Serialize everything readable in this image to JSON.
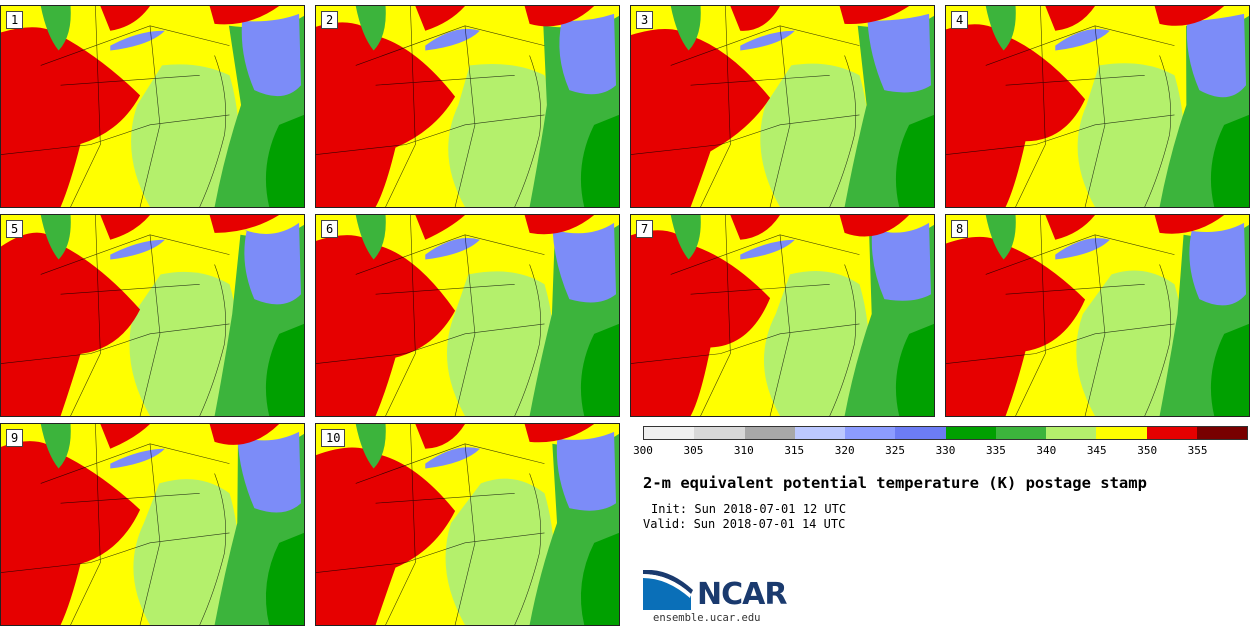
{
  "panels": [
    {
      "label": "1"
    },
    {
      "label": "2"
    },
    {
      "label": "3"
    },
    {
      "label": "4"
    },
    {
      "label": "5"
    },
    {
      "label": "6"
    },
    {
      "label": "7"
    },
    {
      "label": "8"
    },
    {
      "label": "9"
    },
    {
      "label": "10"
    }
  ],
  "colorbar": {
    "colors": [
      "#f0f0f0",
      "#d8d8d8",
      "#a8a8a8",
      "#bcc8ff",
      "#8c9cff",
      "#6c7cf4",
      "#00a000",
      "#3cb43c",
      "#b4f06c",
      "#ffff00",
      "#e60000",
      "#780000"
    ],
    "ticks": [
      "300",
      "305",
      "310",
      "315",
      "320",
      "325",
      "330",
      "335",
      "340",
      "345",
      "350",
      "355"
    ],
    "min": 300,
    "max": 360
  },
  "title": "2-m equivalent potential temperature (K) postage stamp",
  "init": "Init: Sun 2018-07-01 12 UTC",
  "valid": "Valid: Sun 2018-07-01 14 UTC",
  "logo": {
    "text": "NCAR",
    "url": "ensemble.ucar.edu",
    "icon": "ncar-logo-icon"
  }
}
